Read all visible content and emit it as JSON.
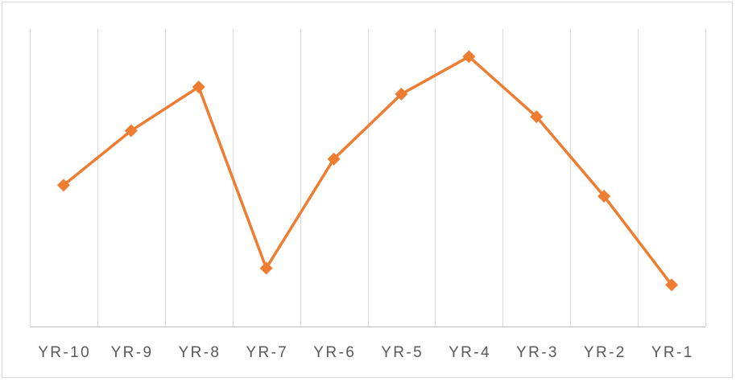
{
  "chart_data": {
    "type": "line",
    "categories": [
      "YR-10",
      "YR-9",
      "YR-8",
      "YR-7",
      "YR-6",
      "YR-5",
      "YR-4",
      "YR-3",
      "YR-2",
      "YR-1"
    ],
    "series": [
      {
        "values": [
          47.5,
          65.8,
          80.5,
          19.6,
          56.3,
          78.1,
          90.7,
          70.5,
          43.8,
          14.0
        ],
        "color": "#ED7D31",
        "marker": "diamond-icon"
      }
    ],
    "ylim": [
      0,
      100
    ],
    "title": "",
    "xlabel": "",
    "ylabel": "",
    "grid": "vertical",
    "legend": "none",
    "gridline_color": "#d9d9d9",
    "axis_color": "#bfbfbf",
    "tick_label_color": "#595959"
  }
}
